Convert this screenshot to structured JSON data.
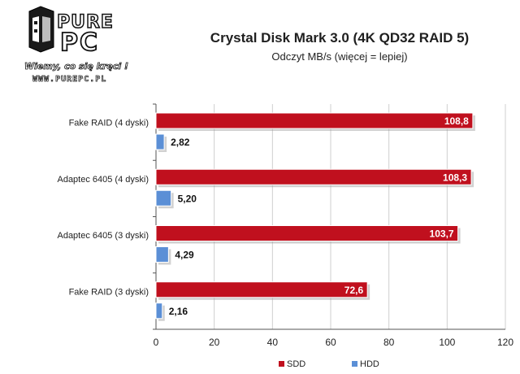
{
  "logo": {
    "word_top": "PURE",
    "word_bottom": "PC",
    "slogan": "Wiemy, co się kręci !",
    "url": "WWW.PUREPC.PL"
  },
  "colors": {
    "sdd": "#c0101e",
    "hdd": "#5b8fd6",
    "grid": "#cfcfcf",
    "axis": "#555555"
  },
  "chart_data": {
    "type": "bar",
    "orientation": "horizontal",
    "title": "Crystal Disk Mark 3.0 (4K QD32 RAID 5)",
    "subtitle": "Odczyt MB/s (więcej = lepiej)",
    "categories": [
      "Fake RAID (4 dyski)",
      "Adaptec 6405 (4 dyski)",
      "Adaptec 6405 (3 dyski)",
      "Fake RAID (3 dyski)"
    ],
    "series": [
      {
        "name": "SDD",
        "values": [
          108.8,
          108.3,
          103.7,
          72.6
        ],
        "labels": [
          "108,8",
          "108,3",
          "103,7",
          "72,6"
        ]
      },
      {
        "name": "HDD",
        "values": [
          2.82,
          5.2,
          4.29,
          2.16
        ],
        "labels": [
          "2,82",
          "5,20",
          "4,29",
          "2,16"
        ]
      }
    ],
    "xlim": [
      0,
      120
    ],
    "xticks": [
      0,
      20,
      40,
      60,
      80,
      100,
      120
    ],
    "grid": true,
    "legend": "bottom"
  }
}
